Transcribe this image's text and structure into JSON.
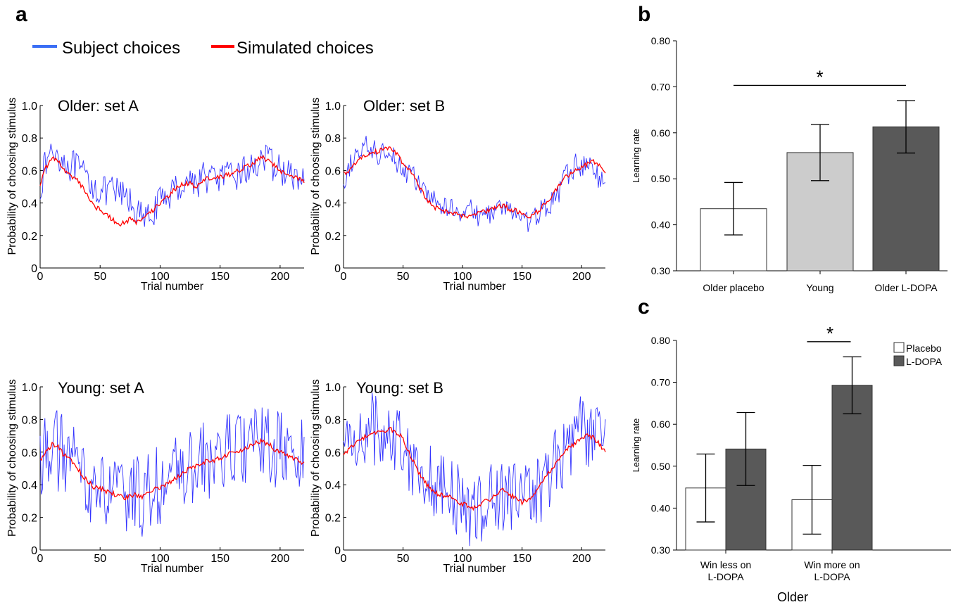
{
  "panel_letters": [
    "a",
    "b",
    "c"
  ],
  "legend": {
    "subject": {
      "label": "Subject choices",
      "color": "#3a6ef5"
    },
    "simulated": {
      "label": "Simulated choices",
      "color": "#ff0000"
    }
  },
  "colors": {
    "subject_line": "#3333ff",
    "simulated_line": "#ff0000",
    "placebo_bar": "#ffffff",
    "young_bar": "#cccccc",
    "ldopa_bar": "#595959"
  },
  "chart_data": [
    {
      "type": "line",
      "id": "older-set-a",
      "title": "Older: set A",
      "xlabel": "Trial number",
      "ylabel": "Probability of choosing stimulus",
      "xlim": [
        0,
        220
      ],
      "ylim": [
        0,
        1
      ],
      "xticks": [
        0,
        50,
        100,
        150,
        200
      ],
      "yticks": [
        0,
        0.2,
        0.4,
        0.6,
        0.8,
        1.0
      ],
      "xticklabels": [
        "0",
        "50",
        "100",
        "150",
        "200"
      ],
      "yticklabels": [
        "0",
        "0.2",
        "0.4",
        "0.6",
        "0.8",
        "1.0"
      ],
      "series": [
        {
          "key": "subject",
          "x": [
            0,
            5,
            10,
            15,
            20,
            25,
            30,
            35,
            40,
            45,
            50,
            55,
            60,
            65,
            70,
            75,
            80,
            85,
            90,
            95,
            100,
            105,
            110,
            115,
            120,
            125,
            130,
            135,
            140,
            145,
            150,
            155,
            160,
            165,
            170,
            175,
            180,
            185,
            190,
            195,
            200,
            205,
            210,
            215,
            220
          ],
          "y": [
            0.5,
            0.65,
            0.72,
            0.7,
            0.66,
            0.63,
            0.62,
            0.57,
            0.55,
            0.5,
            0.48,
            0.46,
            0.47,
            0.46,
            0.44,
            0.41,
            0.36,
            0.3,
            0.3,
            0.36,
            0.4,
            0.45,
            0.47,
            0.5,
            0.52,
            0.55,
            0.52,
            0.56,
            0.56,
            0.55,
            0.56,
            0.56,
            0.55,
            0.58,
            0.6,
            0.6,
            0.65,
            0.68,
            0.65,
            0.63,
            0.6,
            0.6,
            0.55,
            0.55,
            0.53
          ],
          "noise": 0.1
        },
        {
          "key": "simulated",
          "x": [
            0,
            5,
            10,
            15,
            20,
            25,
            30,
            35,
            40,
            45,
            50,
            55,
            60,
            65,
            70,
            75,
            80,
            85,
            90,
            95,
            100,
            105,
            110,
            115,
            120,
            125,
            130,
            135,
            140,
            145,
            150,
            155,
            160,
            165,
            170,
            175,
            180,
            185,
            190,
            195,
            200,
            205,
            210,
            215,
            220
          ],
          "y": [
            0.52,
            0.62,
            0.68,
            0.66,
            0.6,
            0.57,
            0.55,
            0.5,
            0.44,
            0.38,
            0.36,
            0.33,
            0.3,
            0.27,
            0.28,
            0.3,
            0.28,
            0.3,
            0.34,
            0.36,
            0.4,
            0.43,
            0.47,
            0.5,
            0.52,
            0.52,
            0.5,
            0.54,
            0.55,
            0.55,
            0.56,
            0.57,
            0.58,
            0.6,
            0.62,
            0.63,
            0.66,
            0.68,
            0.66,
            0.63,
            0.6,
            0.58,
            0.57,
            0.55,
            0.53
          ],
          "noise": 0.015
        }
      ]
    },
    {
      "type": "line",
      "id": "older-set-b",
      "title": "Older: set B",
      "xlabel": "Trial number",
      "ylabel": "Probability of choosing stimulus",
      "xlim": [
        0,
        220
      ],
      "ylim": [
        0,
        1
      ],
      "xticks": [
        0,
        50,
        100,
        150,
        200
      ],
      "yticks": [
        0,
        0.2,
        0.4,
        0.6,
        0.8,
        1.0
      ],
      "xticklabels": [
        "0",
        "50",
        "100",
        "150",
        "200"
      ],
      "yticklabels": [
        "0",
        "0.2",
        "0.4",
        "0.6",
        "0.8",
        "1.0"
      ],
      "series": [
        {
          "key": "subject",
          "x": [
            0,
            5,
            10,
            15,
            20,
            25,
            30,
            35,
            40,
            45,
            50,
            55,
            60,
            65,
            70,
            75,
            80,
            85,
            90,
            95,
            100,
            105,
            110,
            115,
            120,
            125,
            130,
            135,
            140,
            145,
            150,
            155,
            160,
            165,
            170,
            175,
            180,
            185,
            190,
            195,
            200,
            205,
            210,
            215,
            220
          ],
          "y": [
            0.45,
            0.62,
            0.7,
            0.72,
            0.75,
            0.72,
            0.7,
            0.72,
            0.74,
            0.65,
            0.6,
            0.58,
            0.55,
            0.5,
            0.44,
            0.42,
            0.4,
            0.36,
            0.38,
            0.36,
            0.35,
            0.38,
            0.33,
            0.32,
            0.33,
            0.35,
            0.36,
            0.37,
            0.35,
            0.34,
            0.31,
            0.28,
            0.3,
            0.35,
            0.38,
            0.4,
            0.45,
            0.55,
            0.58,
            0.64,
            0.62,
            0.65,
            0.6,
            0.55,
            0.5
          ],
          "noise": 0.07
        },
        {
          "key": "simulated",
          "x": [
            0,
            5,
            10,
            15,
            20,
            25,
            30,
            35,
            40,
            45,
            50,
            55,
            60,
            65,
            70,
            75,
            80,
            85,
            90,
            95,
            100,
            105,
            110,
            115,
            120,
            125,
            130,
            135,
            140,
            145,
            150,
            155,
            160,
            165,
            170,
            175,
            180,
            185,
            190,
            195,
            200,
            205,
            210,
            215,
            220
          ],
          "y": [
            0.58,
            0.6,
            0.64,
            0.68,
            0.7,
            0.71,
            0.72,
            0.73,
            0.74,
            0.7,
            0.64,
            0.6,
            0.55,
            0.48,
            0.42,
            0.38,
            0.36,
            0.35,
            0.34,
            0.33,
            0.32,
            0.32,
            0.33,
            0.34,
            0.35,
            0.36,
            0.38,
            0.38,
            0.36,
            0.35,
            0.33,
            0.31,
            0.33,
            0.36,
            0.4,
            0.44,
            0.5,
            0.55,
            0.58,
            0.6,
            0.62,
            0.64,
            0.66,
            0.63,
            0.58
          ],
          "noise": 0.015
        }
      ]
    },
    {
      "type": "line",
      "id": "young-set-a",
      "title": "Young: set A",
      "xlabel": "Trial number",
      "ylabel": "Probability of choosing stimulus",
      "xlim": [
        0,
        220
      ],
      "ylim": [
        0,
        1
      ],
      "xticks": [
        0,
        50,
        100,
        150,
        200
      ],
      "yticks": [
        0,
        0.2,
        0.4,
        0.6,
        0.8,
        1.0
      ],
      "xticklabels": [
        "0",
        "50",
        "100",
        "150",
        "200"
      ],
      "yticklabels": [
        "0",
        "0.2",
        "0.4",
        "0.6",
        "0.8",
        "1.0"
      ],
      "series": [
        {
          "key": "subject",
          "x": [
            0,
            5,
            10,
            15,
            20,
            25,
            30,
            35,
            40,
            45,
            50,
            55,
            60,
            65,
            70,
            75,
            80,
            85,
            90,
            95,
            100,
            105,
            110,
            115,
            120,
            125,
            130,
            135,
            140,
            145,
            150,
            155,
            160,
            165,
            170,
            175,
            180,
            185,
            190,
            195,
            200,
            205,
            210,
            215,
            220
          ],
          "y": [
            0.55,
            0.62,
            0.66,
            0.6,
            0.58,
            0.55,
            0.5,
            0.45,
            0.42,
            0.38,
            0.36,
            0.35,
            0.34,
            0.33,
            0.3,
            0.32,
            0.35,
            0.33,
            0.35,
            0.38,
            0.4,
            0.42,
            0.44,
            0.45,
            0.48,
            0.5,
            0.52,
            0.53,
            0.55,
            0.55,
            0.58,
            0.6,
            0.6,
            0.62,
            0.62,
            0.63,
            0.65,
            0.66,
            0.64,
            0.62,
            0.6,
            0.58,
            0.58,
            0.56,
            0.55
          ],
          "noise": 0.25
        },
        {
          "key": "simulated",
          "x": [
            0,
            5,
            10,
            15,
            20,
            25,
            30,
            35,
            40,
            45,
            50,
            55,
            60,
            65,
            70,
            75,
            80,
            85,
            90,
            95,
            100,
            105,
            110,
            115,
            120,
            125,
            130,
            135,
            140,
            145,
            150,
            155,
            160,
            165,
            170,
            175,
            180,
            185,
            190,
            195,
            200,
            205,
            210,
            215,
            220
          ],
          "y": [
            0.55,
            0.6,
            0.65,
            0.63,
            0.58,
            0.55,
            0.52,
            0.46,
            0.42,
            0.38,
            0.38,
            0.36,
            0.35,
            0.33,
            0.32,
            0.33,
            0.34,
            0.33,
            0.35,
            0.37,
            0.38,
            0.4,
            0.42,
            0.45,
            0.48,
            0.5,
            0.52,
            0.53,
            0.55,
            0.55,
            0.56,
            0.58,
            0.6,
            0.6,
            0.62,
            0.64,
            0.66,
            0.67,
            0.65,
            0.62,
            0.6,
            0.58,
            0.57,
            0.55,
            0.53
          ],
          "noise": 0.015
        }
      ]
    },
    {
      "type": "line",
      "id": "young-set-b",
      "title": "Young: set B",
      "xlabel": "Trial number",
      "ylabel": "Probability of choosing stimulus",
      "xlim": [
        0,
        220
      ],
      "ylim": [
        0,
        1
      ],
      "xticks": [
        0,
        50,
        100,
        150,
        200
      ],
      "yticks": [
        0,
        0.2,
        0.4,
        0.6,
        0.8,
        1.0
      ],
      "xticklabels": [
        "0",
        "50",
        "100",
        "150",
        "200"
      ],
      "yticklabels": [
        "0",
        "0.2",
        "0.4",
        "0.6",
        "0.8",
        "1.0"
      ],
      "series": [
        {
          "key": "subject",
          "x": [
            0,
            5,
            10,
            15,
            20,
            25,
            30,
            35,
            40,
            45,
            50,
            55,
            60,
            65,
            70,
            75,
            80,
            85,
            90,
            95,
            100,
            105,
            110,
            115,
            120,
            125,
            130,
            135,
            140,
            145,
            150,
            155,
            160,
            165,
            170,
            175,
            180,
            185,
            190,
            195,
            200,
            205,
            210,
            215,
            220
          ],
          "y": [
            0.6,
            0.65,
            0.7,
            0.72,
            0.73,
            0.74,
            0.75,
            0.74,
            0.72,
            0.7,
            0.65,
            0.6,
            0.55,
            0.5,
            0.45,
            0.42,
            0.4,
            0.36,
            0.32,
            0.3,
            0.28,
            0.26,
            0.25,
            0.26,
            0.3,
            0.32,
            0.33,
            0.35,
            0.34,
            0.32,
            0.3,
            0.32,
            0.36,
            0.4,
            0.45,
            0.5,
            0.55,
            0.6,
            0.65,
            0.7,
            0.75,
            0.72,
            0.7,
            0.68,
            0.65
          ],
          "noise": 0.24
        },
        {
          "key": "simulated",
          "x": [
            0,
            5,
            10,
            15,
            20,
            25,
            30,
            35,
            40,
            45,
            50,
            55,
            60,
            65,
            70,
            75,
            80,
            85,
            90,
            95,
            100,
            105,
            110,
            115,
            120,
            125,
            130,
            135,
            140,
            145,
            150,
            155,
            160,
            165,
            170,
            175,
            180,
            185,
            190,
            195,
            200,
            205,
            210,
            215,
            220
          ],
          "y": [
            0.58,
            0.62,
            0.66,
            0.68,
            0.7,
            0.71,
            0.72,
            0.73,
            0.74,
            0.72,
            0.68,
            0.6,
            0.52,
            0.45,
            0.4,
            0.36,
            0.34,
            0.33,
            0.32,
            0.3,
            0.28,
            0.27,
            0.26,
            0.28,
            0.3,
            0.32,
            0.35,
            0.37,
            0.34,
            0.31,
            0.29,
            0.31,
            0.35,
            0.4,
            0.45,
            0.5,
            0.55,
            0.6,
            0.63,
            0.66,
            0.68,
            0.7,
            0.69,
            0.65,
            0.6
          ],
          "noise": 0.015
        }
      ]
    },
    {
      "type": "bar",
      "id": "panel-b",
      "categories": [
        "Older placebo",
        "Young",
        "Older L-DOPA"
      ],
      "values": [
        0.435,
        0.557,
        0.613
      ],
      "errors": [
        0.057,
        0.061,
        0.057
      ],
      "bar_colors": [
        "placebo_bar",
        "young_bar",
        "ldopa_bar"
      ],
      "ylabel": "Learning rate",
      "ylim": [
        0.3,
        0.8
      ],
      "yticks": [
        0.3,
        0.4,
        0.5,
        0.6,
        0.7,
        0.8
      ],
      "yticklabels": [
        "0.30",
        "0.40",
        "0.50",
        "0.60",
        "0.70",
        "0.80"
      ],
      "significance": {
        "from": 0,
        "to": 2,
        "level": 0.703,
        "label": "*"
      }
    },
    {
      "type": "bar",
      "id": "panel-c",
      "categories": [
        "Win less on\nL-DOPA",
        "Win more on\nL-DOPA"
      ],
      "series": [
        {
          "name": "Placebo",
          "values": [
            0.448,
            0.42
          ],
          "errors": [
            0.081,
            0.082
          ],
          "color": "placebo_bar"
        },
        {
          "name": "L-DOPA",
          "values": [
            0.541,
            0.693
          ],
          "errors": [
            0.087,
            0.068
          ],
          "color": "ldopa_bar"
        }
      ],
      "ylabel": "Learning rate",
      "xlabel": "Older",
      "ylim": [
        0.3,
        0.8
      ],
      "yticks": [
        0.3,
        0.4,
        0.5,
        0.6,
        0.7,
        0.8
      ],
      "yticklabels": [
        "0.30",
        "0.40",
        "0.50",
        "0.60",
        "0.70",
        "0.80"
      ],
      "significance": {
        "category": 1,
        "level": 0.797,
        "label": "*"
      }
    }
  ]
}
